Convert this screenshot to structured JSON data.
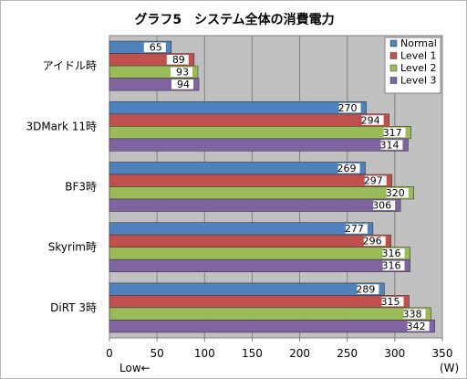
{
  "chart_data": {
    "type": "bar",
    "orientation": "horizontal",
    "title": "グラフ5　システム全体の消費電力",
    "categories": [
      "アイドル時",
      "3DMark 11時",
      "BF3時",
      "Skyrim時",
      "DiRT 3時"
    ],
    "series": [
      {
        "name": "Normal",
        "color": "#4f81bd",
        "values": [
          65,
          270,
          269,
          277,
          289
        ]
      },
      {
        "name": "Level 1",
        "color": "#c0504d",
        "values": [
          89,
          294,
          297,
          296,
          315
        ]
      },
      {
        "name": "Level 2",
        "color": "#9bbb59",
        "values": [
          93,
          317,
          320,
          316,
          338
        ]
      },
      {
        "name": "Level 3",
        "color": "#8064a2",
        "values": [
          94,
          314,
          306,
          316,
          342
        ]
      }
    ],
    "xlim": [
      0,
      350
    ],
    "xticks": [
      0,
      50,
      100,
      150,
      200,
      250,
      300,
      350
    ],
    "x_unit": "(W)",
    "low_note": "Low←",
    "grid": true,
    "legend_position": "top-right"
  }
}
